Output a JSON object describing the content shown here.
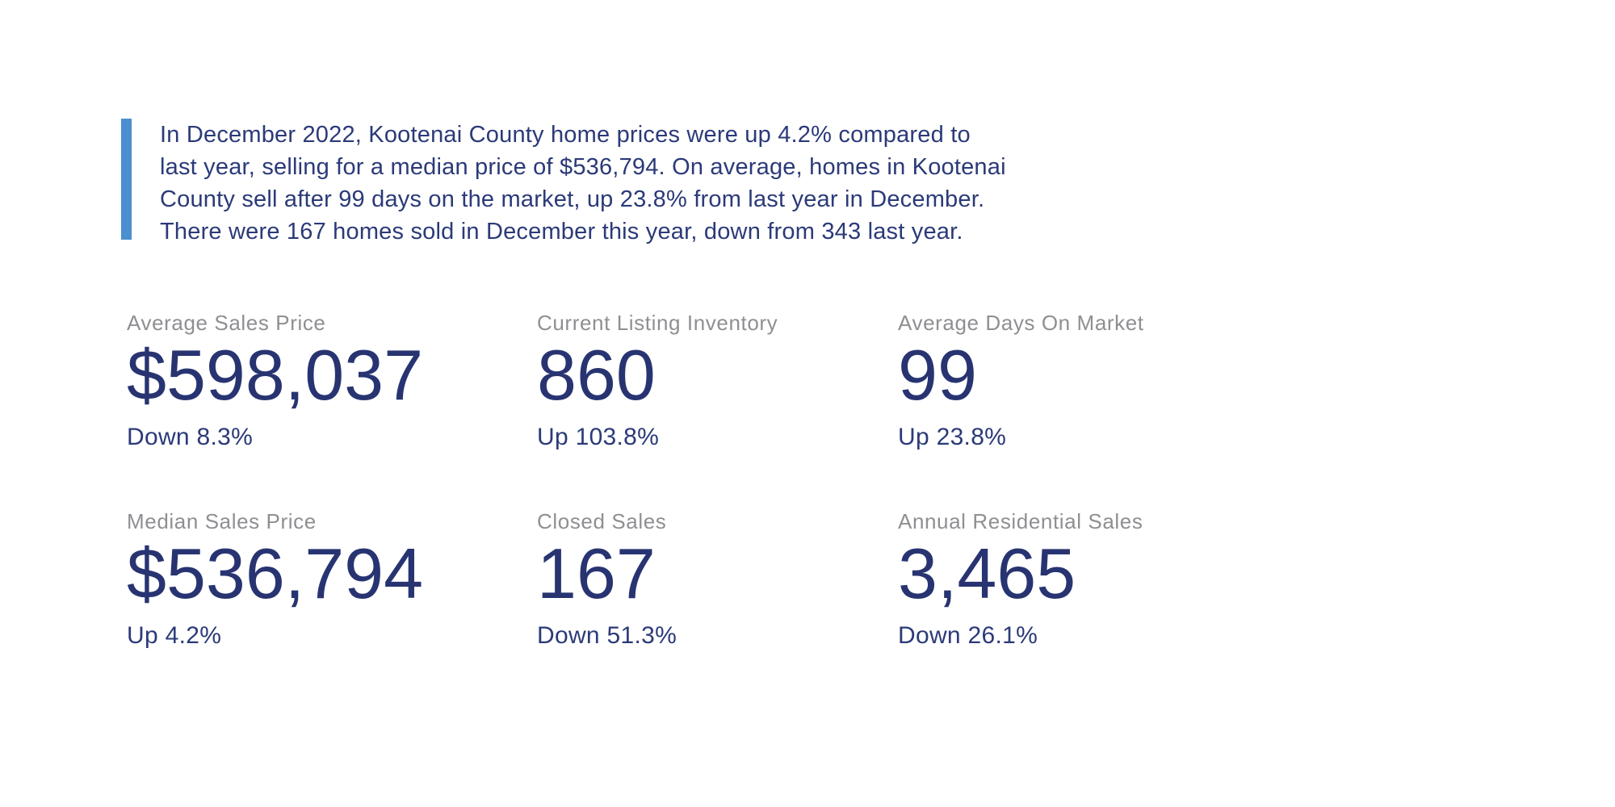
{
  "page": {
    "background_color": "#FFFFFF"
  },
  "summary": {
    "accent_color": "#4A8FCE",
    "text_color": "#2B3A78",
    "lines": [
      "In December 2022, Kootenai County home prices were up 4.2% compared to",
      "last year, selling for a median price of $536,794. On average, homes in Kootenai",
      "County sell after 99 days on the market, up 23.8% from last year in December.",
      "There were 167 homes sold in December this year, down from 343 last year."
    ]
  },
  "stats": {
    "label_color": "#8F8F93",
    "value_color": "#283471",
    "change_color": "#2B3A78",
    "items": [
      {
        "label": "Average Sales Price",
        "value": "$598,037",
        "change": "Down 8.3%"
      },
      {
        "label": "Current Listing Inventory",
        "value": "860",
        "change": "Up 103.8%"
      },
      {
        "label": "Average Days On Market",
        "value": "99",
        "change": "Up 23.8%"
      },
      {
        "label": "Median Sales Price",
        "value": "$536,794",
        "change": "Up 4.2%"
      },
      {
        "label": "Closed Sales",
        "value": "167",
        "change": "Down 51.3%"
      },
      {
        "label": "Annual Residential Sales",
        "value": "3,465",
        "change": "Down 26.1%"
      }
    ]
  }
}
